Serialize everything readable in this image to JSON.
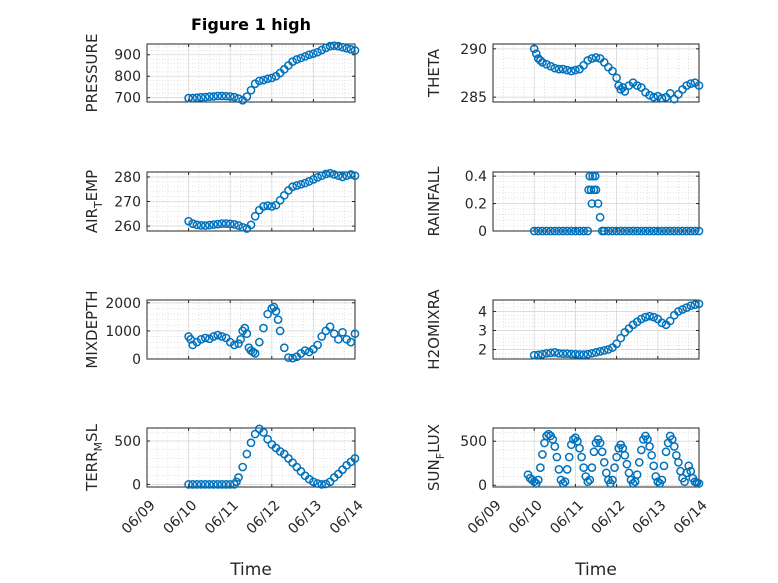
{
  "figure_title": "Figure 1 high",
  "chart_data": [
    {
      "type": "scatter",
      "id": "pressure",
      "ylabel": "PRESSURE",
      "xlabel": "",
      "xlim": [
        0,
        5
      ],
      "ylim": [
        680,
        950
      ],
      "yticks": [
        700,
        800,
        900
      ],
      "ytick_labels": [
        "700",
        "800",
        "900"
      ],
      "xticks": [
        0,
        1,
        2,
        3,
        4,
        5
      ],
      "x": [
        1.0,
        1.1,
        1.2,
        1.3,
        1.4,
        1.5,
        1.6,
        1.7,
        1.8,
        1.9,
        2.0,
        2.1,
        2.2,
        2.3,
        2.4,
        2.5,
        2.6,
        2.7,
        2.8,
        2.9,
        3.0,
        3.1,
        3.2,
        3.3,
        3.4,
        3.5,
        3.6,
        3.7,
        3.8,
        3.9,
        4.0,
        4.1,
        4.2,
        4.3,
        4.4,
        4.5,
        4.6,
        4.7,
        4.8,
        4.9,
        5.0
      ],
      "y": [
        698,
        698,
        700,
        702,
        703,
        705,
        706,
        708,
        708,
        707,
        706,
        703,
        696,
        688,
        705,
        735,
        765,
        778,
        782,
        788,
        792,
        800,
        815,
        832,
        850,
        868,
        878,
        885,
        892,
        900,
        905,
        912,
        922,
        932,
        940,
        942,
        940,
        935,
        930,
        925,
        920
      ]
    },
    {
      "type": "scatter",
      "id": "theta",
      "ylabel": "THETA",
      "xlabel": "",
      "xlim": [
        0,
        5
      ],
      "ylim": [
        284.5,
        290.5
      ],
      "yticks": [
        285,
        290
      ],
      "ytick_labels": [
        "285",
        "290"
      ],
      "xticks": [
        0,
        1,
        2,
        3,
        4,
        5
      ],
      "x": [
        1.0,
        1.05,
        1.1,
        1.15,
        1.2,
        1.3,
        1.4,
        1.5,
        1.6,
        1.7,
        1.8,
        1.9,
        2.0,
        2.1,
        2.2,
        2.3,
        2.4,
        2.5,
        2.6,
        2.7,
        2.8,
        2.9,
        3.0,
        3.05,
        3.1,
        3.15,
        3.2,
        3.3,
        3.4,
        3.5,
        3.6,
        3.7,
        3.8,
        3.9,
        4.0,
        4.1,
        4.2,
        4.3,
        4.4,
        4.5,
        4.6,
        4.7,
        4.8,
        4.9,
        5.0
      ],
      "y": [
        290,
        289.5,
        289,
        288.8,
        288.6,
        288.4,
        288.2,
        288.0,
        287.9,
        287.9,
        287.8,
        287.7,
        287.8,
        287.9,
        288.3,
        288.8,
        289.0,
        289.1,
        289.0,
        288.6,
        288.1,
        287.7,
        287.0,
        286.2,
        285.8,
        286.0,
        285.6,
        286.2,
        286.5,
        286.2,
        286.0,
        285.5,
        285.2,
        285.0,
        285.1,
        284.9,
        285.0,
        285.4,
        284.8,
        285.3,
        285.8,
        286.2,
        286.4,
        286.5,
        286.2
      ]
    },
    {
      "type": "scatter",
      "id": "air_temp",
      "ylabel": "AIR_TEMP",
      "ylabel_main": "AIR",
      "ylabel_sub": "T",
      "ylabel_rest": "EMP",
      "xlabel": "",
      "xlim": [
        0,
        5
      ],
      "ylim": [
        258,
        282
      ],
      "yticks": [
        260,
        270,
        280
      ],
      "ytick_labels": [
        "260",
        "270",
        "280"
      ],
      "xticks": [
        0,
        1,
        2,
        3,
        4,
        5
      ],
      "x": [
        1.0,
        1.1,
        1.2,
        1.3,
        1.4,
        1.5,
        1.6,
        1.7,
        1.8,
        1.9,
        2.0,
        2.1,
        2.2,
        2.3,
        2.4,
        2.5,
        2.6,
        2.7,
        2.8,
        2.9,
        3.0,
        3.1,
        3.2,
        3.3,
        3.4,
        3.5,
        3.6,
        3.7,
        3.8,
        3.9,
        4.0,
        4.1,
        4.2,
        4.3,
        4.4,
        4.5,
        4.6,
        4.7,
        4.8,
        4.9,
        5.0
      ],
      "y": [
        262,
        261,
        260.5,
        260.3,
        260.2,
        260.4,
        260.6,
        260.8,
        261,
        261,
        260.9,
        260.7,
        260.2,
        259.5,
        259,
        260.5,
        264,
        266.5,
        268,
        268.3,
        268,
        268.5,
        270.5,
        272.5,
        274.5,
        276,
        276.5,
        277,
        277.5,
        278.2,
        279,
        279.8,
        280.5,
        281.2,
        281.5,
        281,
        280.5,
        280,
        280.5,
        281,
        280.5
      ]
    },
    {
      "type": "scatter",
      "id": "rainfall",
      "ylabel": "RAINFALL",
      "xlabel": "",
      "xlim": [
        0,
        5
      ],
      "ylim": [
        0,
        0.43
      ],
      "yticks": [
        0,
        0.2,
        0.4
      ],
      "ytick_labels": [
        "0",
        "0.2",
        "0.4"
      ],
      "xticks": [
        0,
        1,
        2,
        3,
        4,
        5
      ],
      "x": [
        1.0,
        1.1,
        1.2,
        1.3,
        1.4,
        1.5,
        1.6,
        1.7,
        1.8,
        1.9,
        2.0,
        2.1,
        2.2,
        2.3,
        2.32,
        2.35,
        2.38,
        2.4,
        2.42,
        2.45,
        2.48,
        2.5,
        2.55,
        2.6,
        2.65,
        2.7,
        2.8,
        2.9,
        3.0,
        3.1,
        3.2,
        3.3,
        3.4,
        3.5,
        3.6,
        3.7,
        3.8,
        3.9,
        4.0,
        4.1,
        4.2,
        4.3,
        4.4,
        4.5,
        4.6,
        4.7,
        4.8,
        4.9,
        5.0
      ],
      "y": [
        0,
        0,
        0,
        0,
        0,
        0,
        0,
        0,
        0,
        0,
        0,
        0,
        0,
        0,
        0.3,
        0.4,
        0.3,
        0.2,
        0.4,
        0.3,
        0.4,
        0.3,
        0.2,
        0.1,
        0,
        0,
        0,
        0,
        0,
        0,
        0,
        0,
        0,
        0,
        0,
        0,
        0,
        0,
        0,
        0,
        0,
        0,
        0,
        0,
        0,
        0,
        0,
        0,
        0
      ]
    },
    {
      "type": "scatter",
      "id": "mixdepth",
      "ylabel": "MIXDEPTH",
      "xlabel": "",
      "xlim": [
        0,
        5
      ],
      "ylim": [
        0,
        2100
      ],
      "yticks": [
        0,
        1000,
        2000
      ],
      "ytick_labels": [
        "0",
        "1000",
        "2000"
      ],
      "xticks": [
        0,
        1,
        2,
        3,
        4,
        5
      ],
      "x": [
        1.0,
        1.05,
        1.1,
        1.2,
        1.3,
        1.4,
        1.5,
        1.6,
        1.7,
        1.8,
        1.9,
        2.0,
        2.1,
        2.2,
        2.25,
        2.3,
        2.35,
        2.4,
        2.45,
        2.5,
        2.55,
        2.6,
        2.7,
        2.8,
        2.9,
        3.0,
        3.05,
        3.1,
        3.15,
        3.2,
        3.3,
        3.4,
        3.5,
        3.6,
        3.7,
        3.8,
        3.9,
        4.0,
        4.1,
        4.2,
        4.3,
        4.4,
        4.5,
        4.6,
        4.7,
        4.8,
        4.9,
        5.0
      ],
      "y": [
        800,
        700,
        500,
        600,
        700,
        750,
        720,
        800,
        850,
        800,
        750,
        600,
        500,
        550,
        700,
        1000,
        1100,
        900,
        400,
        300,
        250,
        200,
        600,
        1100,
        1600,
        1800,
        1850,
        1700,
        1400,
        1000,
        400,
        50,
        30,
        80,
        200,
        300,
        250,
        350,
        500,
        800,
        1000,
        1150,
        900,
        700,
        950,
        700,
        600,
        900
      ]
    },
    {
      "type": "scatter",
      "id": "h2omixra",
      "ylabel": "H2OMIXRA",
      "xlabel": "",
      "xlim": [
        0,
        5
      ],
      "ylim": [
        1.5,
        4.6
      ],
      "yticks": [
        2,
        3,
        4
      ],
      "ytick_labels": [
        "2",
        "3",
        "4"
      ],
      "xticks": [
        0,
        1,
        2,
        3,
        4,
        5
      ],
      "x": [
        1.0,
        1.1,
        1.2,
        1.3,
        1.4,
        1.5,
        1.6,
        1.7,
        1.8,
        1.9,
        2.0,
        2.1,
        2.2,
        2.3,
        2.4,
        2.5,
        2.6,
        2.7,
        2.8,
        2.9,
        3.0,
        3.1,
        3.2,
        3.3,
        3.4,
        3.5,
        3.6,
        3.7,
        3.8,
        3.9,
        4.0,
        4.1,
        4.2,
        4.3,
        4.4,
        4.5,
        4.6,
        4.7,
        4.8,
        4.9,
        5.0
      ],
      "y": [
        1.7,
        1.72,
        1.75,
        1.8,
        1.82,
        1.85,
        1.8,
        1.78,
        1.78,
        1.76,
        1.75,
        1.74,
        1.73,
        1.75,
        1.8,
        1.85,
        1.9,
        1.95,
        2.0,
        2.1,
        2.3,
        2.6,
        2.9,
        3.1,
        3.3,
        3.45,
        3.6,
        3.7,
        3.75,
        3.7,
        3.6,
        3.4,
        3.3,
        3.5,
        3.8,
        4.0,
        4.1,
        4.2,
        4.3,
        4.35,
        4.4
      ]
    },
    {
      "type": "scatter",
      "id": "terr_msl",
      "ylabel": "TERR_MSL",
      "ylabel_main": "TERR",
      "ylabel_sub": "M",
      "ylabel_rest": "SL",
      "xlabel": "Time",
      "xlim": [
        0,
        5
      ],
      "ylim": [
        -30,
        650
      ],
      "yticks": [
        0,
        500
      ],
      "ytick_labels": [
        "0",
        "500"
      ],
      "xticks": [
        0,
        1,
        2,
        3,
        4,
        5
      ],
      "xtick_labels": [
        "06/09",
        "06/10",
        "06/11",
        "06/12",
        "06/13",
        "06/14"
      ],
      "x": [
        1.0,
        1.1,
        1.2,
        1.3,
        1.4,
        1.5,
        1.6,
        1.7,
        1.8,
        1.9,
        2.0,
        2.1,
        2.15,
        2.2,
        2.3,
        2.4,
        2.5,
        2.6,
        2.7,
        2.8,
        2.9,
        3.0,
        3.1,
        3.2,
        3.3,
        3.4,
        3.5,
        3.6,
        3.7,
        3.8,
        3.9,
        4.0,
        4.1,
        4.2,
        4.3,
        4.4,
        4.5,
        4.6,
        4.7,
        4.8,
        4.9,
        5.0
      ],
      "y": [
        0,
        0,
        0,
        0,
        0,
        0,
        0,
        0,
        0,
        0,
        0,
        0,
        30,
        80,
        200,
        350,
        480,
        580,
        640,
        600,
        520,
        460,
        420,
        380,
        350,
        300,
        250,
        200,
        150,
        100,
        60,
        30,
        10,
        0,
        5,
        30,
        80,
        120,
        170,
        220,
        260,
        300
      ]
    },
    {
      "type": "scatter",
      "id": "sun_flux",
      "ylabel": "SUN_FLUX",
      "ylabel_main": "SUN",
      "ylabel_sub": "F",
      "ylabel_rest": "LUX",
      "xlabel": "Time",
      "xlim": [
        0,
        5
      ],
      "ylim": [
        -20,
        650
      ],
      "yticks": [
        0,
        500
      ],
      "ytick_labels": [
        "0",
        "500"
      ],
      "xticks": [
        0,
        1,
        2,
        3,
        4,
        5
      ],
      "xtick_labels": [
        "06/09",
        "06/10",
        "06/11",
        "06/12",
        "06/13",
        "06/14"
      ],
      "x": [
        0.85,
        0.9,
        0.95,
        1.0,
        1.05,
        1.1,
        1.15,
        1.2,
        1.25,
        1.3,
        1.35,
        1.4,
        1.45,
        1.5,
        1.55,
        1.6,
        1.65,
        1.7,
        1.75,
        1.8,
        1.85,
        1.9,
        1.95,
        2.0,
        2.05,
        2.1,
        2.15,
        2.2,
        2.25,
        2.3,
        2.35,
        2.4,
        2.45,
        2.5,
        2.55,
        2.6,
        2.65,
        2.7,
        2.75,
        2.8,
        2.85,
        2.9,
        2.95,
        3.0,
        3.05,
        3.1,
        3.15,
        3.2,
        3.25,
        3.3,
        3.35,
        3.4,
        3.45,
        3.5,
        3.55,
        3.6,
        3.65,
        3.7,
        3.75,
        3.8,
        3.85,
        3.9,
        3.95,
        4.0,
        4.05,
        4.1,
        4.15,
        4.2,
        4.25,
        4.3,
        4.35,
        4.4,
        4.45,
        4.5,
        4.55,
        4.6,
        4.65,
        4.7,
        4.75,
        4.8,
        4.85,
        4.9,
        4.95,
        5.0
      ],
      "y": [
        120,
        80,
        60,
        40,
        20,
        60,
        200,
        350,
        480,
        560,
        580,
        560,
        520,
        440,
        320,
        180,
        60,
        20,
        40,
        180,
        320,
        460,
        520,
        540,
        500,
        420,
        320,
        200,
        100,
        40,
        60,
        200,
        380,
        480,
        520,
        480,
        380,
        260,
        140,
        60,
        20,
        60,
        200,
        320,
        420,
        460,
        420,
        340,
        240,
        140,
        60,
        20,
        40,
        120,
        260,
        400,
        520,
        560,
        520,
        440,
        340,
        220,
        100,
        40,
        20,
        60,
        220,
        380,
        480,
        560,
        520,
        440,
        340,
        260,
        160,
        80,
        40,
        140,
        220,
        160,
        80,
        40,
        30,
        20
      ]
    }
  ]
}
